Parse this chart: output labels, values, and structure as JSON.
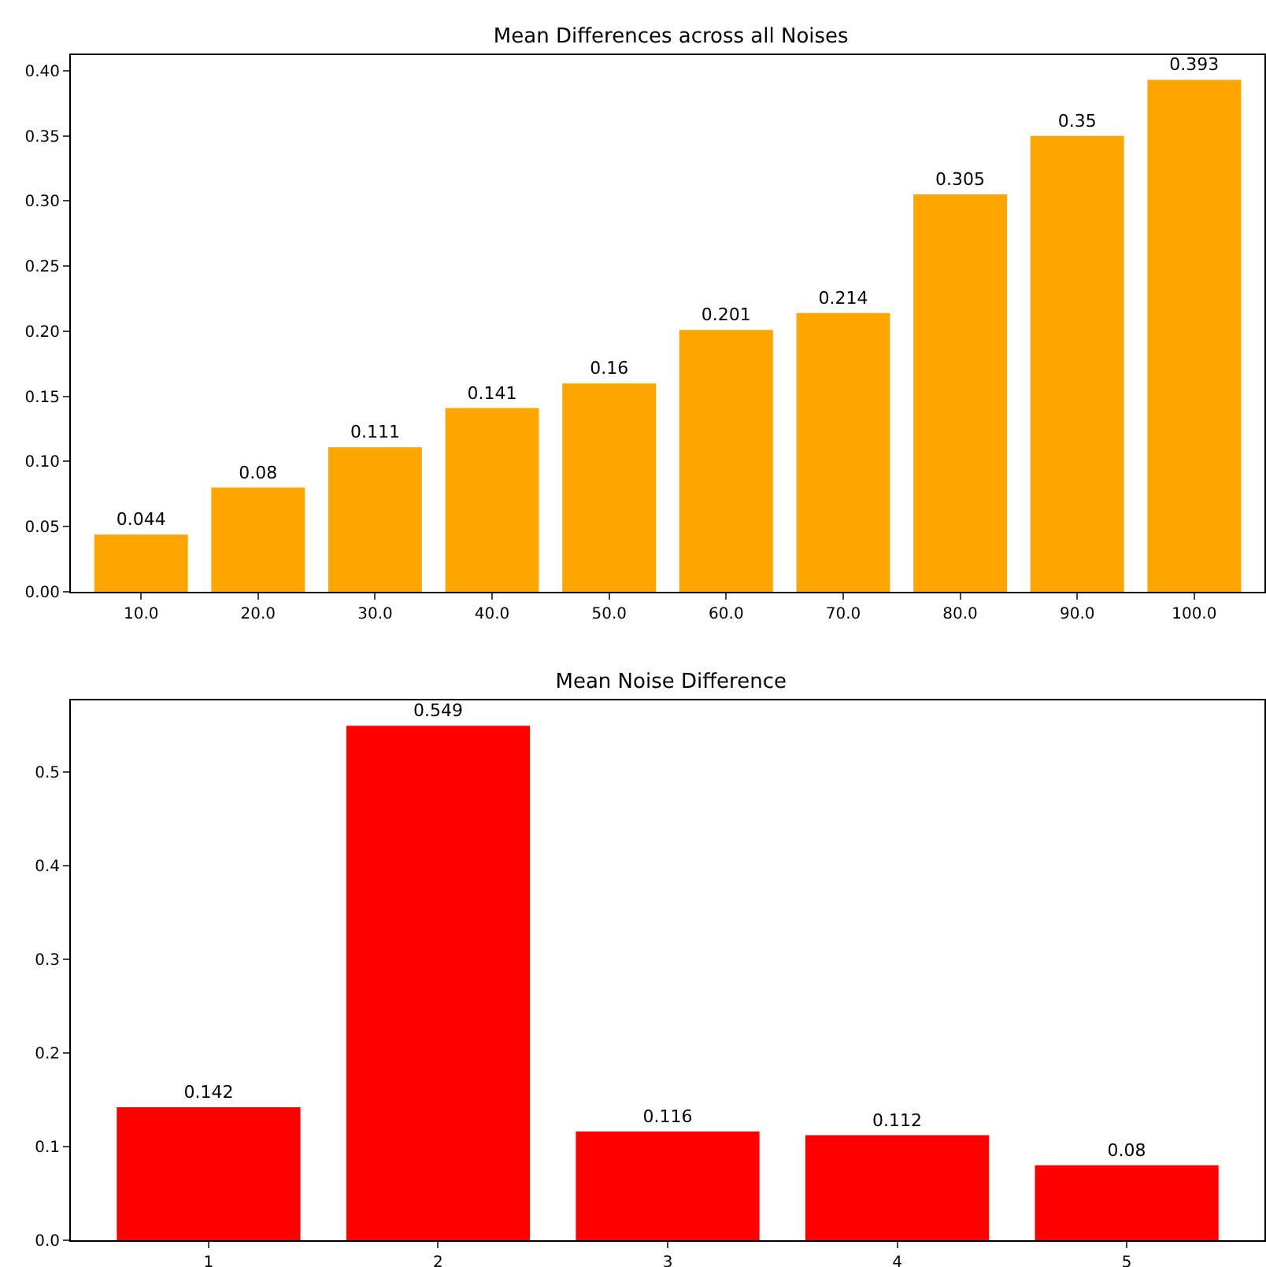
{
  "chart_data": [
    {
      "type": "bar",
      "title": "Mean Differences across all Noises",
      "categories": [
        "10.0",
        "20.0",
        "30.0",
        "40.0",
        "50.0",
        "60.0",
        "70.0",
        "80.0",
        "90.0",
        "100.0"
      ],
      "values": [
        0.044,
        0.08,
        0.111,
        0.141,
        0.16,
        0.201,
        0.214,
        0.305,
        0.35,
        0.393
      ],
      "color": "#ffa500",
      "ylim": [
        0,
        0.412
      ],
      "yticks": [
        {
          "value": 0,
          "label": "0.00"
        },
        {
          "value": 0.05,
          "label": "0.05"
        },
        {
          "value": 0.1,
          "label": "0.10"
        },
        {
          "value": 0.15,
          "label": "0.15"
        },
        {
          "value": 0.2,
          "label": "0.20"
        },
        {
          "value": 0.25,
          "label": "0.25"
        },
        {
          "value": 0.3,
          "label": "0.30"
        },
        {
          "value": 0.35,
          "label": "0.35"
        },
        {
          "value": 0.4,
          "label": "0.40"
        }
      ],
      "data_labels": true,
      "grid": false
    },
    {
      "type": "bar",
      "title": "Mean Noise Difference",
      "categories": [
        "1",
        "2",
        "3",
        "4",
        "5"
      ],
      "values": [
        0.142,
        0.549,
        0.116,
        0.112,
        0.08
      ],
      "color": "#ff0000",
      "ylim": [
        0,
        0.576
      ],
      "yticks": [
        {
          "value": 0,
          "label": "0.0"
        },
        {
          "value": 0.1,
          "label": "0.1"
        },
        {
          "value": 0.2,
          "label": "0.2"
        },
        {
          "value": 0.3,
          "label": "0.3"
        },
        {
          "value": 0.4,
          "label": "0.4"
        },
        {
          "value": 0.5,
          "label": "0.5"
        }
      ],
      "data_labels": true,
      "grid": false
    }
  ]
}
